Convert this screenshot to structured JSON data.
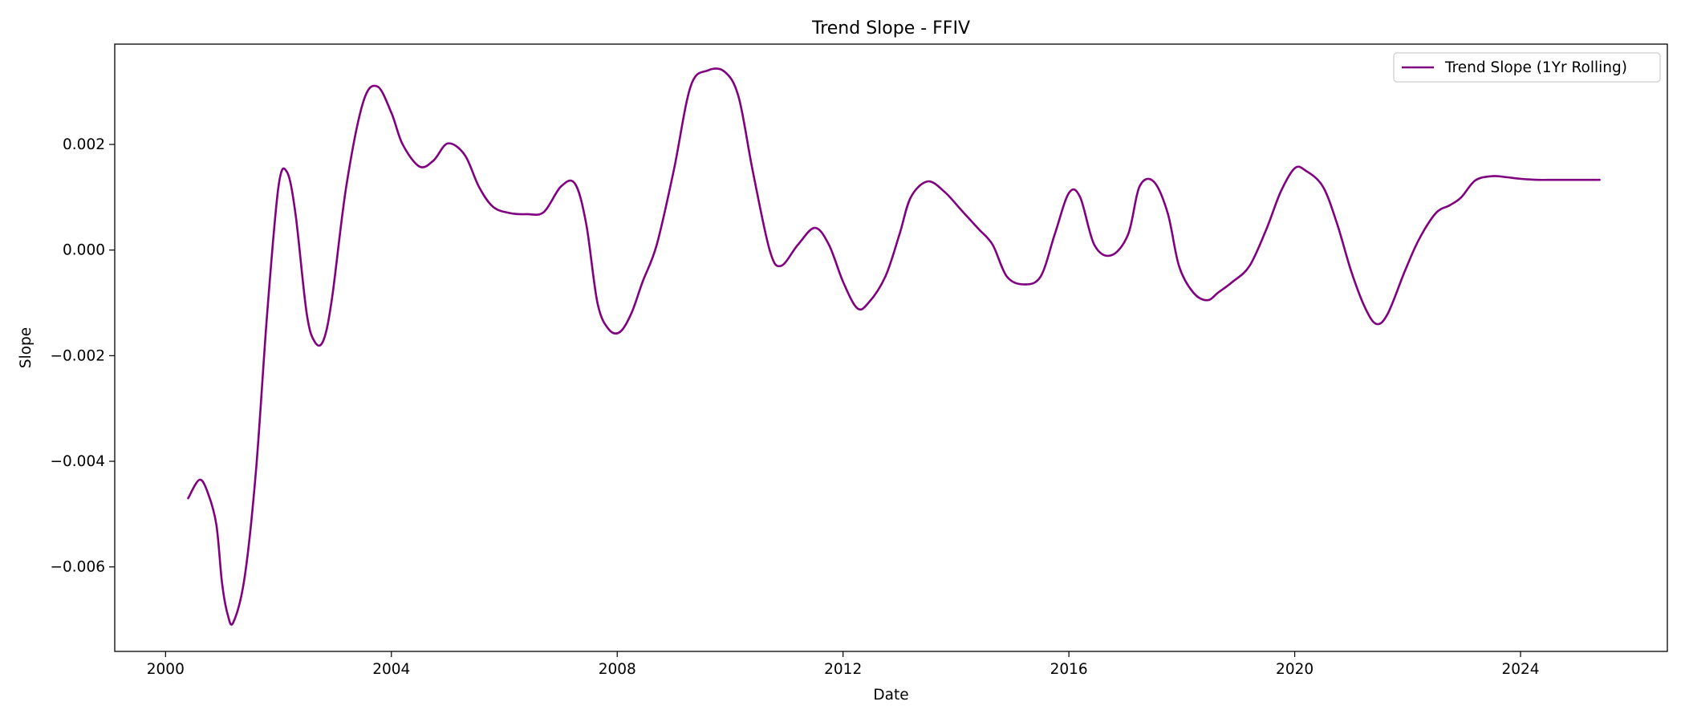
{
  "chart_data": {
    "type": "line",
    "title": "Trend Slope - FFIV",
    "xlabel": "Date",
    "ylabel": "Slope",
    "xlim": [
      1999.1,
      2026.6
    ],
    "ylim": [
      -0.0076,
      0.0039
    ],
    "x_ticks": [
      2000,
      2004,
      2008,
      2012,
      2016,
      2020,
      2024
    ],
    "x_tick_labels": [
      "2000",
      "2004",
      "2008",
      "2012",
      "2016",
      "2020",
      "2024"
    ],
    "y_ticks": [
      -0.006,
      -0.004,
      -0.002,
      0.0,
      0.002
    ],
    "y_tick_labels": [
      "−0.006",
      "−0.004",
      "−0.002",
      "0.000",
      "0.002"
    ],
    "grid": false,
    "legend_position": "top-right",
    "series": [
      {
        "name": "Trend Slope (1Yr Rolling)",
        "color": "#800080",
        "x": [
          2000.4,
          2000.6,
          2000.75,
          2000.9,
          2001.0,
          2001.1,
          2001.2,
          2001.4,
          2001.6,
          2001.8,
          2002.0,
          2002.15,
          2002.3,
          2002.5,
          2002.65,
          2002.8,
          2002.95,
          2003.2,
          2003.5,
          2003.75,
          2004.0,
          2004.2,
          2004.5,
          2004.75,
          2005.0,
          2005.3,
          2005.55,
          2005.8,
          2006.1,
          2006.4,
          2006.7,
          2007.0,
          2007.25,
          2007.45,
          2007.65,
          2007.85,
          2008.05,
          2008.25,
          2008.45,
          2008.7,
          2009.0,
          2009.3,
          2009.6,
          2009.9,
          2010.15,
          2010.4,
          2010.7,
          2010.9,
          2011.2,
          2011.5,
          2011.75,
          2012.0,
          2012.25,
          2012.45,
          2012.75,
          2013.0,
          2013.2,
          2013.5,
          2013.8,
          2014.1,
          2014.4,
          2014.65,
          2014.9,
          2015.2,
          2015.5,
          2015.75,
          2016.0,
          2016.2,
          2016.45,
          2016.75,
          2017.05,
          2017.25,
          2017.5,
          2017.75,
          2017.95,
          2018.2,
          2018.45,
          2018.65,
          2018.9,
          2019.2,
          2019.5,
          2019.75,
          2020.0,
          2020.2,
          2020.5,
          2020.75,
          2021.0,
          2021.25,
          2021.45,
          2021.65,
          2021.95,
          2022.2,
          2022.5,
          2022.75,
          2022.95,
          2023.2,
          2023.5,
          2023.75,
          2024.0,
          2024.3,
          2024.6,
          2024.85,
          2025.05,
          2025.25,
          2025.4
        ],
        "values": [
          -0.0047,
          -0.00435,
          -0.0046,
          -0.0052,
          -0.0063,
          -0.0069,
          -0.00705,
          -0.0062,
          -0.0042,
          -0.0012,
          0.0012,
          0.00148,
          0.0007,
          -0.0012,
          -0.00175,
          -0.0017,
          -0.0009,
          0.0012,
          0.0028,
          0.0031,
          0.0026,
          0.002,
          0.00158,
          0.0017,
          0.00202,
          0.0018,
          0.0012,
          0.00082,
          0.0007,
          0.00068,
          0.00072,
          0.0012,
          0.00126,
          0.0005,
          -0.001,
          -0.0015,
          -0.00155,
          -0.0012,
          -0.0006,
          0.0001,
          0.0015,
          0.0031,
          0.0034,
          0.00338,
          0.0029,
          0.0015,
          0.0,
          -0.0003,
          0.0001,
          0.00042,
          0.0001,
          -0.0006,
          -0.0011,
          -0.001,
          -0.0005,
          0.0003,
          0.001,
          0.0013,
          0.0011,
          0.00075,
          0.0004,
          0.0001,
          -0.0005,
          -0.00065,
          -0.0005,
          0.0003,
          0.00108,
          0.001,
          0.0001,
          -0.0001,
          0.0003,
          0.0012,
          0.0013,
          0.0007,
          -0.0003,
          -0.0008,
          -0.00095,
          -0.0008,
          -0.0006,
          -0.0003,
          0.0004,
          0.0011,
          0.00155,
          0.0015,
          0.0012,
          0.0005,
          -0.0004,
          -0.0011,
          -0.0014,
          -0.0012,
          -0.0004,
          0.0002,
          0.0007,
          0.00085,
          0.001,
          0.00132,
          0.0014,
          0.00138,
          0.00135,
          0.00133,
          0.00133,
          0.00133,
          0.00133,
          0.00133,
          0.00133
        ]
      }
    ]
  }
}
